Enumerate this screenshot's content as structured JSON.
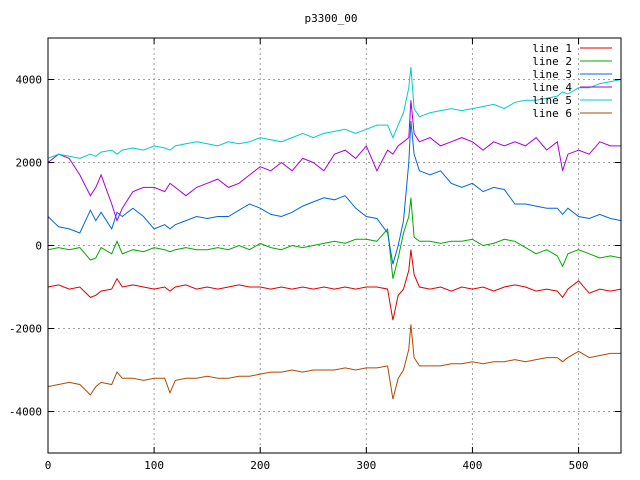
{
  "chart_data": {
    "type": "line",
    "title": "p3300_00",
    "xlabel": "",
    "ylabel": "",
    "xlim": [
      0,
      540
    ],
    "ylim": [
      -5000,
      5000
    ],
    "x_ticks": [
      0,
      100,
      200,
      300,
      400,
      500
    ],
    "y_ticks": [
      -4000,
      -2000,
      0,
      2000,
      4000
    ],
    "grid": true,
    "legend_position": "top-right",
    "x": [
      0,
      10,
      20,
      30,
      40,
      45,
      50,
      60,
      65,
      70,
      80,
      90,
      100,
      110,
      115,
      120,
      130,
      140,
      150,
      160,
      170,
      180,
      190,
      200,
      210,
      220,
      230,
      240,
      250,
      260,
      270,
      280,
      290,
      300,
      310,
      320,
      325,
      330,
      335,
      340,
      342,
      345,
      350,
      360,
      370,
      380,
      390,
      400,
      410,
      420,
      430,
      440,
      450,
      460,
      470,
      480,
      485,
      490,
      500,
      510,
      520,
      530,
      540
    ],
    "series": [
      {
        "name": "line 1",
        "color": "#dd0000",
        "values": [
          -1000,
          -950,
          -1050,
          -1000,
          -1250,
          -1200,
          -1100,
          -1050,
          -800,
          -1000,
          -950,
          -1000,
          -1050,
          -1000,
          -1100,
          -1000,
          -950,
          -1050,
          -1000,
          -1050,
          -1000,
          -950,
          -1000,
          -1000,
          -1050,
          -1000,
          -1050,
          -1000,
          -1050,
          -1000,
          -1050,
          -1000,
          -1050,
          -1000,
          -1000,
          -1050,
          -1800,
          -1200,
          -1050,
          -600,
          -100,
          -700,
          -1000,
          -1050,
          -1000,
          -1100,
          -1000,
          -1050,
          -1000,
          -1100,
          -1000,
          -950,
          -1000,
          -1100,
          -1050,
          -1100,
          -1250,
          -1050,
          -850,
          -1150,
          -1050,
          -1100,
          -1050
        ]
      },
      {
        "name": "line 2",
        "color": "#00aa00",
        "values": [
          -100,
          -50,
          -100,
          -50,
          -350,
          -300,
          -50,
          -200,
          100,
          -200,
          -100,
          -150,
          -50,
          -100,
          -150,
          -100,
          -50,
          -100,
          -100,
          -50,
          -100,
          0,
          -100,
          50,
          -50,
          -100,
          0,
          -50,
          0,
          50,
          100,
          50,
          150,
          150,
          100,
          400,
          -800,
          -300,
          300,
          700,
          1150,
          200,
          100,
          100,
          50,
          100,
          100,
          150,
          0,
          50,
          150,
          100,
          -50,
          -200,
          -100,
          -250,
          -500,
          -200,
          -100,
          -200,
          -300,
          -250,
          -300
        ]
      },
      {
        "name": "line 3",
        "color": "#0066dd",
        "values": [
          700,
          450,
          400,
          300,
          850,
          600,
          800,
          400,
          800,
          700,
          900,
          700,
          400,
          500,
          400,
          500,
          600,
          700,
          650,
          700,
          700,
          850,
          1000,
          900,
          750,
          700,
          800,
          950,
          1050,
          1150,
          1100,
          1200,
          900,
          700,
          650,
          300,
          -450,
          0,
          600,
          2000,
          3000,
          2200,
          1800,
          1700,
          1800,
          1500,
          1400,
          1500,
          1300,
          1400,
          1350,
          1000,
          1000,
          950,
          900,
          900,
          750,
          900,
          700,
          650,
          750,
          650,
          600
        ]
      },
      {
        "name": "line 4",
        "color": "#aa00dd",
        "values": [
          2000,
          2200,
          2100,
          1700,
          1200,
          1400,
          1700,
          1000,
          600,
          900,
          1300,
          1400,
          1400,
          1300,
          1500,
          1400,
          1200,
          1400,
          1500,
          1600,
          1400,
          1500,
          1700,
          1900,
          1800,
          2000,
          1800,
          2100,
          2000,
          1800,
          2200,
          2300,
          2100,
          2400,
          1800,
          2300,
          2200,
          2400,
          2500,
          2600,
          3500,
          2700,
          2500,
          2600,
          2400,
          2500,
          2600,
          2500,
          2300,
          2500,
          2400,
          2500,
          2400,
          2600,
          2300,
          2500,
          1800,
          2200,
          2300,
          2200,
          2500,
          2400,
          2400
        ]
      },
      {
        "name": "line 5",
        "color": "#00cccc",
        "values": [
          2100,
          2200,
          2150,
          2100,
          2200,
          2150,
          2250,
          2300,
          2200,
          2300,
          2350,
          2300,
          2400,
          2350,
          2300,
          2400,
          2450,
          2500,
          2450,
          2400,
          2500,
          2450,
          2500,
          2600,
          2550,
          2500,
          2600,
          2700,
          2600,
          2700,
          2750,
          2800,
          2700,
          2800,
          2900,
          2900,
          2600,
          2900,
          3200,
          3800,
          4300,
          3300,
          3100,
          3200,
          3250,
          3300,
          3250,
          3300,
          3350,
          3400,
          3300,
          3450,
          3500,
          3500,
          3550,
          3600,
          3700,
          3650,
          3800,
          3800,
          3900,
          3950,
          4000
        ]
      },
      {
        "name": "line 6",
        "color": "#b04a00",
        "values": [
          -3400,
          -3350,
          -3300,
          -3350,
          -3600,
          -3400,
          -3300,
          -3350,
          -3050,
          -3200,
          -3200,
          -3250,
          -3200,
          -3200,
          -3550,
          -3250,
          -3200,
          -3200,
          -3150,
          -3200,
          -3200,
          -3150,
          -3150,
          -3100,
          -3050,
          -3050,
          -3000,
          -3050,
          -3000,
          -3000,
          -3000,
          -2950,
          -3000,
          -2950,
          -2950,
          -2900,
          -3700,
          -3200,
          -3000,
          -2500,
          -1900,
          -2700,
          -2900,
          -2900,
          -2900,
          -2850,
          -2850,
          -2800,
          -2850,
          -2800,
          -2800,
          -2750,
          -2800,
          -2750,
          -2700,
          -2700,
          -2800,
          -2700,
          -2550,
          -2700,
          -2650,
          -2600,
          -2600
        ]
      }
    ]
  }
}
